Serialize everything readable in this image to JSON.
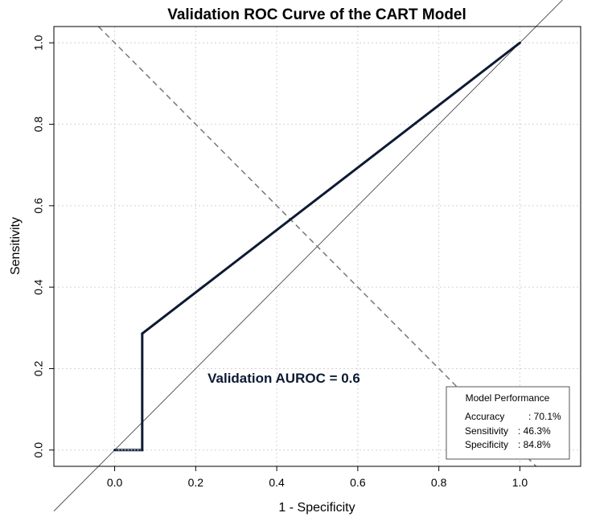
{
  "chart_data": {
    "type": "line",
    "title": "Validation ROC Curve of the CART Model",
    "xlabel": "1 - Specificity",
    "ylabel": "Sensitivity",
    "xlim": [
      -0.15,
      1.15
    ],
    "ylim": [
      -0.04,
      1.04
    ],
    "x_ticks": [
      "0.0",
      "0.2",
      "0.4",
      "0.6",
      "0.8",
      "1.0"
    ],
    "y_ticks": [
      "0.0",
      "0.2",
      "0.4",
      "0.6",
      "0.8",
      "1.0"
    ],
    "grid": true,
    "series": [
      {
        "x": [
          0.0,
          0.068,
          0.068,
          1.0
        ],
        "y": [
          0.0,
          0.0,
          0.286,
          1.0
        ],
        "color": "#0d1a33"
      }
    ],
    "reference_lines": [
      {
        "x": [
          -0.15,
          1.15
        ],
        "y": [
          -0.15,
          1.15
        ],
        "style": "solid"
      },
      {
        "x": [
          -0.04,
          1.04
        ],
        "y": [
          1.04,
          -0.04
        ],
        "style": "dashed"
      }
    ],
    "annotation": "Validation AUROC = 0.6",
    "legend": {
      "placement": "bottom-right",
      "title": "Model Performance",
      "entries": [
        {
          "label": "Accuracy",
          "value": ": 70.1%"
        },
        {
          "label": "Sensitivity",
          "value": ": 46.3%"
        },
        {
          "label": "Specificity",
          "value": ": 84.8%"
        }
      ]
    },
    "metrics": {
      "accuracy": 70.1,
      "sensitivity": 46.3,
      "specificity": 84.8,
      "auroc": 0.6
    }
  }
}
